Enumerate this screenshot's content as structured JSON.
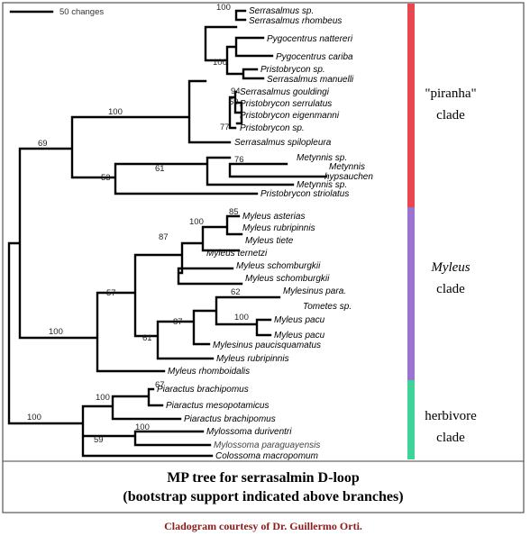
{
  "scale_label": "50 changes",
  "taxa": [
    "Serrasalmus sp.",
    "Serrasalmus rhombeus",
    "Pygocentrus nattereri",
    "Pygocentrus cariba",
    "Pristobrycon sp.",
    "Serrasalmus manuelli",
    "Serrasalmus gouldingi",
    "Pristobrycon serrulatus",
    "Pristobrycon eigenmanni",
    "Pristobrycon sp.",
    "Serrasalmus spilopleura",
    "Metynnis sp.",
    "Metynnis",
    "hypsauchen",
    "Metynnis sp.",
    "Pristobrycon striolatus",
    "Myleus asterias",
    "Myleus rubripinnis",
    "Myleus tiete",
    "Myleus ternetzi",
    "Myleus schomburgkii",
    "Myleus schomburgkii",
    "Mylesinus para.",
    "Tometes sp.",
    "Myleus pacu",
    "Myleus pacu",
    "Mylesinus paucisquamatus",
    "Myleus rubripinnis",
    "Myleus rhomboidalis",
    "Piaractus brachipomus",
    "Piaractus mesopotamicus",
    "Piaractus brachipomus",
    "Mylossoma duriventri",
    "Mylossoma paraguayensis",
    "Colossoma macropomum"
  ],
  "bootstrap": [
    "100",
    "100",
    "94",
    "59",
    "77",
    "100",
    "69",
    "76",
    "61",
    "53",
    "85",
    "100",
    "87",
    "62",
    "100",
    "87",
    "61",
    "57",
    "100",
    "67",
    "100",
    "100",
    "59",
    "100"
  ],
  "clades": [
    {
      "name": "\"piranha\"",
      "sub": "clade",
      "color": "#e8474f"
    },
    {
      "name": "Myleus",
      "sub": "clade",
      "color": "#9b73d1"
    },
    {
      "name": "herbivore",
      "sub": "clade",
      "color": "#3fd39a"
    }
  ],
  "caption": {
    "line1": "MP tree for serrasalmin D-loop",
    "line2": "(bootstrap support indicated above branches)"
  },
  "credit": "Cladogram courtesy of Dr. Guillermo Orti."
}
